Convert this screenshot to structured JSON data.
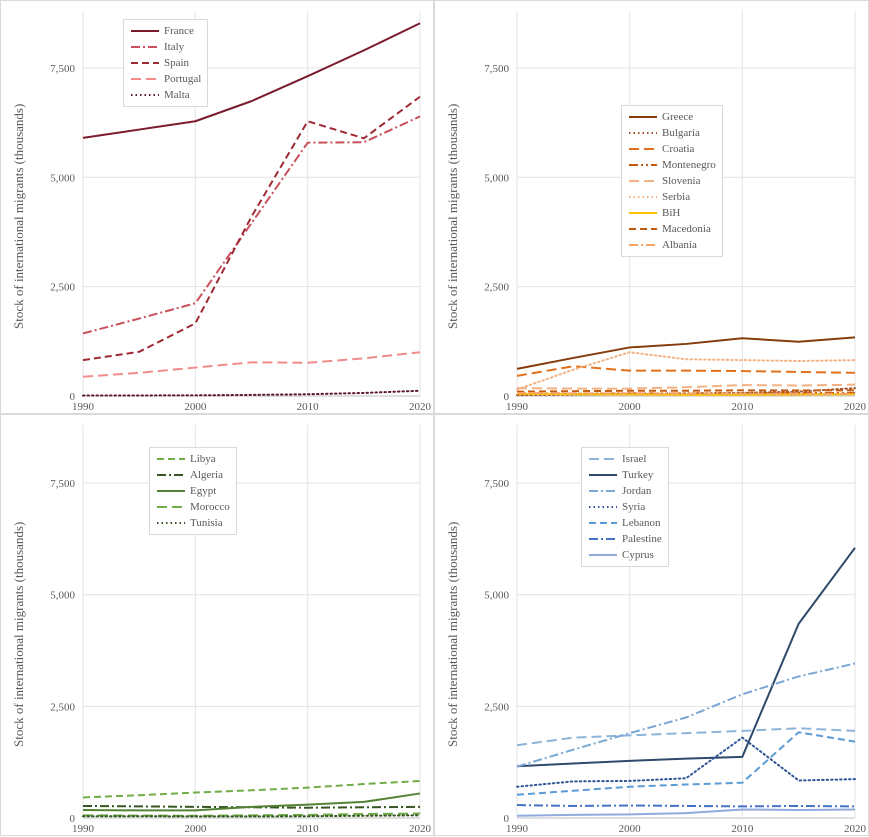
{
  "chart_data": [
    {
      "type": "line",
      "ylabel": "Stock of international migrants (thousands)",
      "x": [
        1990,
        1995,
        2000,
        2005,
        2010,
        2015,
        2020
      ],
      "xticks": [
        "1990",
        "2000",
        "2010",
        "2020"
      ],
      "ylim": [
        0,
        8800
      ],
      "yticks": [
        0,
        2500,
        5000,
        7500
      ],
      "ytick_labels": [
        "0",
        "2,500",
        "5,000",
        "7,500"
      ],
      "grid": "horizontal and vertical",
      "legend_position": "top-left",
      "series": [
        {
          "name": "France",
          "color": "#7b1c2e",
          "dash": "solid",
          "values": [
            5900,
            6090,
            6280,
            6740,
            7310,
            7900,
            8520
          ]
        },
        {
          "name": "Italy",
          "color": "#c8505a",
          "dash": "dashdot",
          "values": [
            1430,
            1770,
            2120,
            3950,
            5790,
            5800,
            6390
          ]
        },
        {
          "name": "Spain",
          "color": "#9e2a35",
          "dash": "dash",
          "values": [
            820,
            1010,
            1660,
            4100,
            6280,
            5890,
            6840
          ]
        },
        {
          "name": "Portugal",
          "color": "#f08c8c",
          "dash": "longdash",
          "values": [
            440,
            530,
            650,
            770,
            760,
            860,
            1000
          ]
        },
        {
          "name": "Malta",
          "color": "#5c1a28",
          "dash": "dot",
          "values": [
            10,
            12,
            15,
            25,
            40,
            70,
            120
          ]
        }
      ]
    },
    {
      "type": "line",
      "ylabel": "Stock of international migrants (thousands)",
      "x": [
        1990,
        1995,
        2000,
        2005,
        2010,
        2015,
        2020
      ],
      "xticks": [
        "1990",
        "2000",
        "2010",
        "2020"
      ],
      "ylim": [
        0,
        8800
      ],
      "yticks": [
        0,
        2500,
        5000,
        7500
      ],
      "ytick_labels": [
        "0",
        "2,500",
        "5,000",
        "7,500"
      ],
      "grid": "horizontal and vertical",
      "legend_position": "center",
      "series": [
        {
          "name": "Greece",
          "color": "#843c0c",
          "dash": "solid",
          "values": [
            620,
            870,
            1110,
            1190,
            1320,
            1240,
            1340
          ]
        },
        {
          "name": "Bulgaria",
          "color": "#a0522d",
          "dash": "dot",
          "values": [
            20,
            30,
            45,
            60,
            70,
            100,
            180
          ]
        },
        {
          "name": "Croatia",
          "color": "#e2701d",
          "dash": "longdash",
          "values": [
            460,
            680,
            580,
            580,
            570,
            550,
            530
          ]
        },
        {
          "name": "Montenegro",
          "color": "#c55a11",
          "dash": "dashdotdot",
          "values": [
            40,
            50,
            60,
            60,
            60,
            70,
            70
          ]
        },
        {
          "name": "Slovenia",
          "color": "#f4b183",
          "dash": "longdash",
          "values": [
            180,
            170,
            170,
            200,
            250,
            240,
            260
          ]
        },
        {
          "name": "Serbia",
          "color": "#f4b183",
          "dash": "dot",
          "values": [
            150,
            600,
            1000,
            840,
            820,
            800,
            820
          ]
        },
        {
          "name": "BiH",
          "color": "#ffc000",
          "dash": "solid",
          "values": [
            50,
            40,
            35,
            30,
            30,
            35,
            40
          ]
        },
        {
          "name": "Macedonia",
          "color": "#c55a11",
          "dash": "dash",
          "values": [
            100,
            110,
            120,
            120,
            130,
            130,
            130
          ]
        },
        {
          "name": "Albania",
          "color": "#f4a460",
          "dash": "dashdot",
          "values": [
            70,
            60,
            60,
            55,
            52,
            50,
            50
          ]
        }
      ]
    },
    {
      "type": "line",
      "ylabel": "Stock of international migrants (thousands)",
      "x": [
        1990,
        1995,
        2000,
        2005,
        2010,
        2015,
        2020
      ],
      "xticks": [
        "1990",
        "2000",
        "2010",
        "2020"
      ],
      "ylim": [
        0,
        8800
      ],
      "yticks": [
        0,
        2500,
        5000,
        7500
      ],
      "ytick_labels": [
        "0",
        "2,500",
        "5,000",
        "7,500"
      ],
      "grid": "horizontal and vertical",
      "legend_position": "top-center",
      "series": [
        {
          "name": "Libya",
          "color": "#70ad47",
          "dash": "dash",
          "values": [
            460,
            510,
            570,
            620,
            680,
            760,
            830
          ]
        },
        {
          "name": "Algeria",
          "color": "#375623",
          "dash": "dashdot",
          "values": [
            270,
            260,
            250,
            240,
            230,
            240,
            250
          ]
        },
        {
          "name": "Egypt",
          "color": "#548235",
          "dash": "solid",
          "values": [
            180,
            170,
            170,
            250,
            300,
            360,
            550
          ]
        },
        {
          "name": "Morocco",
          "color": "#70ad47",
          "dash": "longdash",
          "values": [
            60,
            55,
            50,
            60,
            70,
            90,
            100
          ]
        },
        {
          "name": "Tunisia",
          "color": "#375623",
          "dash": "dot",
          "values": [
            40,
            40,
            35,
            35,
            40,
            50,
            60
          ]
        }
      ]
    },
    {
      "type": "line",
      "ylabel": "Stock of international migrants (thousands)",
      "x": [
        1990,
        1995,
        2000,
        2005,
        2010,
        2015,
        2020
      ],
      "xticks": [
        "1990",
        "2000",
        "2010",
        "2020"
      ],
      "ylim": [
        0,
        8800
      ],
      "yticks": [
        0,
        2500,
        5000,
        7500
      ],
      "ytick_labels": [
        "0",
        "2,500",
        "5,000",
        "7,500"
      ],
      "grid": "horizontal and vertical",
      "legend_position": "top-center",
      "series": [
        {
          "name": "Israel",
          "color": "#8fb4d9",
          "dash": "longdash",
          "values": [
            1630,
            1800,
            1850,
            1900,
            1950,
            2010,
            1950
          ]
        },
        {
          "name": "Turkey",
          "color": "#2e4a6b",
          "dash": "solid",
          "values": [
            1160,
            1220,
            1280,
            1330,
            1370,
            4350,
            6050
          ]
        },
        {
          "name": "Jordan",
          "color": "#7aa7d4",
          "dash": "dashdot",
          "values": [
            1150,
            1530,
            1900,
            2250,
            2770,
            3170,
            3460
          ]
        },
        {
          "name": "Syria",
          "color": "#2f5597",
          "dash": "dot",
          "values": [
            700,
            820,
            830,
            890,
            1800,
            840,
            870
          ]
        },
        {
          "name": "Lebanon",
          "color": "#5b9bd5",
          "dash": "dash",
          "values": [
            520,
            610,
            700,
            750,
            790,
            1920,
            1710
          ]
        },
        {
          "name": "Palestine",
          "color": "#4472c4",
          "dash": "dashdot",
          "values": [
            290,
            270,
            280,
            270,
            260,
            270,
            260
          ]
        },
        {
          "name": "Cyprus",
          "color": "#8faadc",
          "dash": "solid",
          "values": [
            50,
            70,
            80,
            110,
            190,
            180,
            190
          ]
        }
      ]
    }
  ]
}
